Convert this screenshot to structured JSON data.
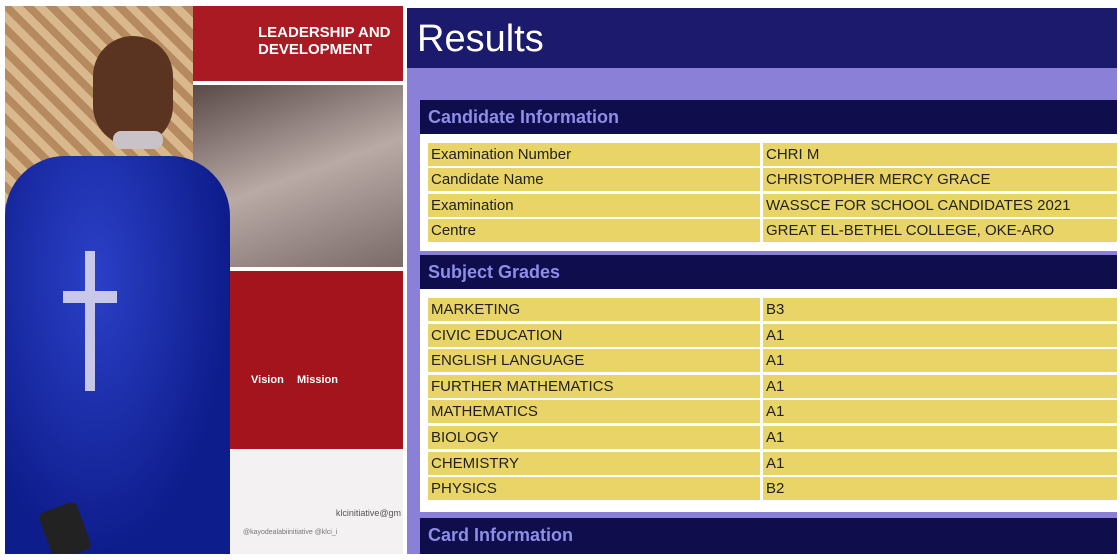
{
  "photo": {
    "banner_title": [
      "LEADERSHIP AND",
      "DEVELOPMENT"
    ],
    "vision": "Vision",
    "mission": "Mission",
    "email": "klcinitiative@gm",
    "handles": "@kayodealabiinitiative  @klci_i"
  },
  "results": {
    "title": "Results",
    "candidate_section": "Candidate Information",
    "candidate": [
      {
        "label": "Examination Number",
        "value": "CHRI       M"
      },
      {
        "label": "Candidate Name",
        "value": "CHRISTOPHER MERCY GRACE"
      },
      {
        "label": "Examination",
        "value": "WASSCE FOR SCHOOL CANDIDATES 2021"
      },
      {
        "label": "Centre",
        "value": "GREAT EL-BETHEL COLLEGE, OKE-ARO"
      }
    ],
    "grades_section": "Subject Grades",
    "grades": [
      {
        "subject": "MARKETING",
        "grade": "B3"
      },
      {
        "subject": "CIVIC EDUCATION",
        "grade": "A1"
      },
      {
        "subject": "ENGLISH LANGUAGE",
        "grade": "A1"
      },
      {
        "subject": "FURTHER MATHEMATICS",
        "grade": "A1"
      },
      {
        "subject": "MATHEMATICS",
        "grade": "A1"
      },
      {
        "subject": "BIOLOGY",
        "grade": "A1"
      },
      {
        "subject": "CHEMISTRY",
        "grade": "A1"
      },
      {
        "subject": "PHYSICS",
        "grade": "B2"
      }
    ],
    "card_section": "Card Information",
    "colors": {
      "header": "#1c1a6c",
      "section": "#0f0d4c",
      "band": "#8b80d8",
      "row": "#e9d467"
    }
  }
}
